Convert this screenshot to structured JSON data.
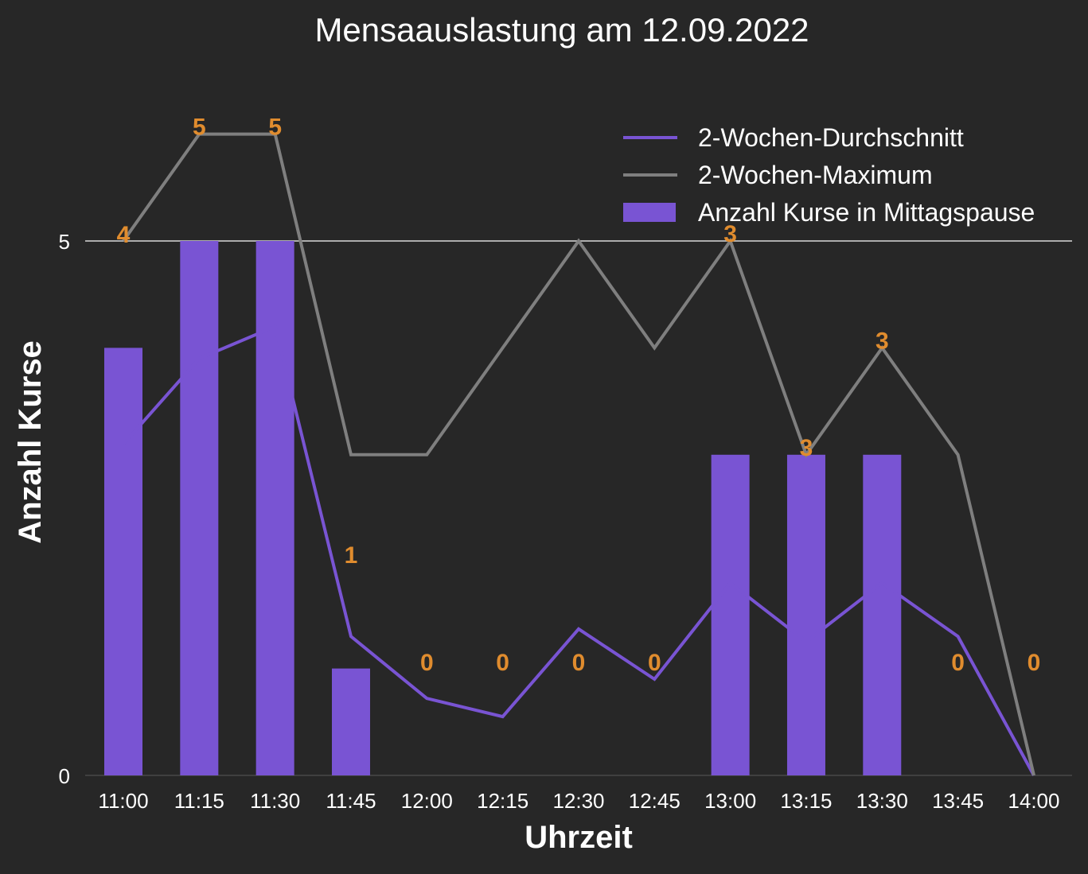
{
  "chart_data": {
    "type": "bar",
    "title": "Mensaauslastung am 12.09.2022",
    "xlabel": "Uhrzeit",
    "ylabel": "Anzahl Kurse",
    "ylim": [
      0,
      5
    ],
    "yticks": [
      "0",
      "5"
    ],
    "grid": "horizontal gridline at 5",
    "legend_position": "top-right",
    "categories": [
      "11:00",
      "11:15",
      "11:30",
      "11:45",
      "12:00",
      "12:15",
      "12:30",
      "12:45",
      "13:00",
      "13:15",
      "13:30",
      "13:45",
      "14:00"
    ],
    "series": [
      {
        "name": "Anzahl Kurse in Mittagspause",
        "kind": "bar",
        "color": "#7954d3",
        "values": [
          4,
          5,
          5,
          1,
          0,
          0,
          0,
          0,
          3,
          3,
          3,
          0,
          0
        ],
        "data_labels": [
          "4",
          "5",
          "5",
          "1",
          "0",
          "0",
          "0",
          "0",
          "3",
          "3",
          "3",
          "0",
          "0"
        ]
      },
      {
        "name": "2-Wochen-Durchschnitt",
        "kind": "line",
        "color": "#7954d3",
        "values": [
          3.1,
          3.9,
          4.2,
          1.3,
          0.72,
          0.55,
          1.37,
          0.9,
          1.8,
          1.25,
          1.8,
          1.3,
          0
        ]
      },
      {
        "name": "2-Wochen-Maximum",
        "kind": "line",
        "color": "#7f7f7f",
        "values": [
          5,
          6,
          6,
          3,
          3,
          4,
          5,
          4,
          5,
          3,
          4,
          3,
          0
        ]
      }
    ],
    "colors": {
      "background": "#272727",
      "bars": "#7954d3",
      "avg_line": "#7954d3",
      "max_line": "#7f7f7f",
      "data_labels": "#e08c2e",
      "text": "#ffffff",
      "gridline": "#d9d9d9"
    }
  }
}
